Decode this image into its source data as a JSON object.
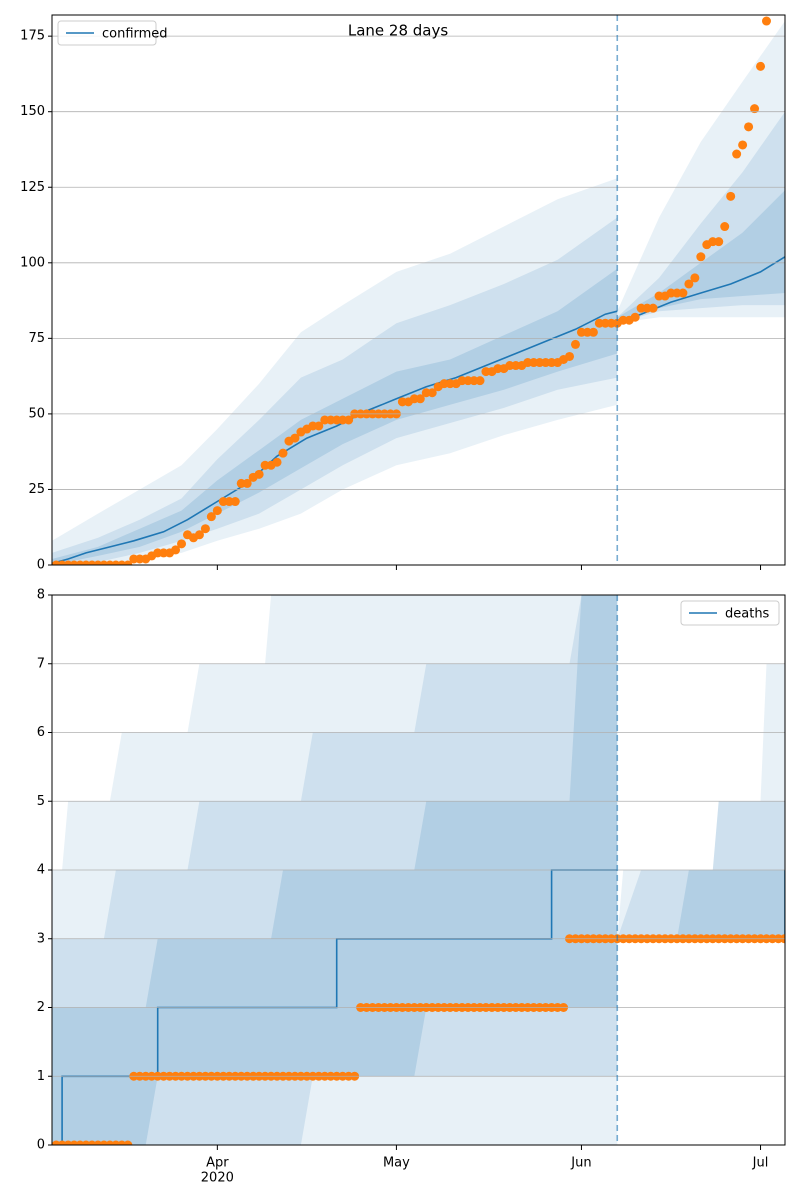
{
  "chart_data": [
    {
      "type": "line",
      "title": "Lane 28 days",
      "legend": "upper left",
      "grid": true,
      "xlim": [
        -0.7,
        122.1
      ],
      "ylim": [
        0,
        182
      ],
      "yticks": [
        0,
        25,
        50,
        75,
        100,
        125,
        150,
        175
      ],
      "xticks": [
        27,
        57,
        88,
        118
      ],
      "xticklabels": false,
      "vline": 94,
      "series": [
        {
          "name": "confirmed",
          "color": "#1f77b4",
          "x": [
            -0.7,
            2,
            5,
            9,
            13,
            18,
            22,
            27,
            32,
            37,
            42,
            47,
            52,
            57,
            62,
            67,
            72,
            77,
            82,
            87,
            92,
            94,
            null,
            94,
            98,
            103,
            108,
            113,
            118,
            122.1
          ],
          "values": [
            0.5,
            2,
            4,
            6,
            8,
            11,
            15,
            21,
            27,
            36,
            42,
            46,
            51,
            55,
            59,
            62,
            66,
            70,
            74,
            78,
            83,
            84,
            null,
            80,
            83,
            87,
            90,
            93,
            97,
            102
          ]
        }
      ],
      "points": {
        "color": "#ff7f0e",
        "x": [
          0,
          1,
          2,
          3,
          4,
          5,
          6,
          7,
          8,
          9,
          10,
          11,
          12,
          13,
          14,
          15,
          16,
          17,
          18,
          19,
          20,
          21,
          22,
          23,
          24,
          25,
          26,
          27,
          28,
          29,
          30,
          31,
          32,
          33,
          34,
          35,
          36,
          37,
          38,
          39,
          40,
          41,
          42,
          43,
          44,
          45,
          46,
          47,
          48,
          49,
          50,
          51,
          52,
          53,
          54,
          55,
          56,
          57,
          58,
          59,
          60,
          61,
          62,
          63,
          64,
          65,
          66,
          67,
          68,
          69,
          70,
          71,
          72,
          73,
          74,
          75,
          76,
          77,
          78,
          79,
          80,
          81,
          82,
          83,
          84,
          85,
          86,
          87,
          88,
          89,
          90,
          91,
          92,
          93,
          94,
          95,
          96,
          97,
          98,
          99,
          100,
          101,
          102,
          103,
          104,
          105,
          106,
          107,
          108,
          109,
          110,
          111,
          112,
          113,
          114,
          115,
          116,
          117,
          118,
          119
        ],
        "values": [
          0,
          0,
          0,
          0,
          0,
          0,
          0,
          0,
          0,
          0,
          0,
          0,
          0,
          2,
          2,
          2,
          3,
          4,
          4,
          4,
          5,
          7,
          10,
          9,
          10,
          12,
          16,
          18,
          21,
          21,
          21,
          27,
          27,
          29,
          30,
          33,
          33,
          34,
          37,
          41,
          42,
          44,
          45,
          46,
          46,
          48,
          48,
          48,
          48,
          48,
          50,
          50,
          50,
          50,
          50,
          50,
          50,
          50,
          54,
          54,
          55,
          55,
          57,
          57,
          59,
          60,
          60,
          60,
          61,
          61,
          61,
          61,
          64,
          64,
          65,
          65,
          66,
          66,
          66,
          67,
          67,
          67,
          67,
          67,
          67,
          68,
          69,
          73,
          77,
          77,
          77,
          80,
          80,
          80,
          80,
          81,
          81,
          82,
          85,
          85,
          85,
          89,
          89,
          90,
          90,
          90,
          93,
          95,
          102,
          106,
          107,
          107,
          112,
          122,
          136,
          139,
          145,
          151,
          165,
          180
        ]
      },
      "band_color": "#1f77b4",
      "bands": [
        {
          "x": [
            -0.7,
            7,
            14,
            21,
            27,
            34,
            41,
            48,
            57,
            66,
            75,
            84,
            94,
            null,
            94,
            101,
            108,
            115,
            122.1
          ],
          "lower": [
            0,
            0,
            2,
            4,
            8,
            12,
            17,
            25,
            33,
            37,
            43,
            48,
            53,
            null,
            80,
            82,
            82,
            82,
            82
          ],
          "upper": [
            8,
            17,
            25,
            33,
            45,
            60,
            77,
            86,
            97,
            103,
            112,
            121,
            128,
            null,
            84,
            115,
            140,
            160,
            180
          ]
        },
        {
          "x": [
            -0.7,
            7,
            14,
            21,
            27,
            34,
            41,
            48,
            57,
            66,
            75,
            84,
            94,
            null,
            94,
            101,
            108,
            115,
            122.1
          ],
          "lower": [
            0,
            1,
            4,
            8,
            12,
            17,
            25,
            33,
            42,
            47,
            52,
            58,
            62,
            null,
            80,
            84,
            85,
            86,
            86
          ],
          "upper": [
            4,
            9,
            15,
            22,
            35,
            48,
            62,
            68,
            80,
            86,
            93,
            101,
            115,
            null,
            82,
            95,
            113,
            130,
            150
          ]
        },
        {
          "x": [
            -0.7,
            7,
            14,
            21,
            27,
            34,
            41,
            48,
            57,
            66,
            75,
            84,
            94,
            null,
            94,
            101,
            108,
            115,
            122.1
          ],
          "lower": [
            0,
            3,
            6,
            11,
            17,
            24,
            32,
            40,
            48,
            53,
            58,
            64,
            70,
            null,
            80,
            85,
            88,
            89,
            90
          ],
          "upper": [
            2,
            6,
            12,
            18,
            28,
            38,
            48,
            55,
            64,
            68,
            76,
            84,
            98,
            null,
            82,
            90,
            100,
            110,
            124
          ]
        }
      ]
    },
    {
      "type": "line",
      "legend": "upper right",
      "grid": true,
      "drawstyle": "steps-post",
      "xlim": [
        -0.7,
        122.1
      ],
      "ylim": [
        0,
        8
      ],
      "yticks": [
        0,
        1,
        2,
        3,
        4,
        5,
        6,
        7,
        8
      ],
      "xticks": [
        {
          "value": 27,
          "label": "Apr",
          "sublabel": "2020"
        },
        {
          "value": 57,
          "label": "May"
        },
        {
          "value": 88,
          "label": "Jun"
        },
        {
          "value": 118,
          "label": "Jul"
        }
      ],
      "vline": 94,
      "series": [
        {
          "name": "deaths",
          "color": "#1f77b4",
          "x": [
            -0.7,
            1,
            17,
            47,
            83,
            94,
            null,
            94,
            121,
            122.1
          ],
          "values": [
            0,
            1,
            2,
            3,
            4,
            4,
            null,
            3,
            3,
            4
          ]
        }
      ],
      "points": {
        "color": "#ff7f0e",
        "x": [
          0,
          1,
          2,
          3,
          4,
          5,
          6,
          7,
          8,
          9,
          10,
          11,
          12,
          13,
          14,
          15,
          16,
          17,
          18,
          19,
          20,
          21,
          22,
          23,
          24,
          25,
          26,
          27,
          28,
          29,
          30,
          31,
          32,
          33,
          34,
          35,
          36,
          37,
          38,
          39,
          40,
          41,
          42,
          43,
          44,
          45,
          46,
          47,
          48,
          49,
          50,
          51,
          52,
          53,
          54,
          55,
          56,
          57,
          58,
          59,
          60,
          61,
          62,
          63,
          64,
          65,
          66,
          67,
          68,
          69,
          70,
          71,
          72,
          73,
          74,
          75,
          76,
          77,
          78,
          79,
          80,
          81,
          82,
          83,
          84,
          85,
          86,
          87,
          88,
          89,
          90,
          91,
          92,
          93,
          94,
          95,
          96,
          97,
          98,
          99,
          100,
          101,
          102,
          103,
          104,
          105,
          106,
          107,
          108,
          109,
          110,
          111,
          112,
          113,
          114,
          115,
          116,
          117,
          118,
          119,
          120,
          121,
          122
        ],
        "values": [
          0,
          0,
          0,
          0,
          0,
          0,
          0,
          0,
          0,
          0,
          0,
          0,
          0,
          1,
          1,
          1,
          1,
          1,
          1,
          1,
          1,
          1,
          1,
          1,
          1,
          1,
          1,
          1,
          1,
          1,
          1,
          1,
          1,
          1,
          1,
          1,
          1,
          1,
          1,
          1,
          1,
          1,
          1,
          1,
          1,
          1,
          1,
          1,
          1,
          1,
          1,
          2,
          2,
          2,
          2,
          2,
          2,
          2,
          2,
          2,
          2,
          2,
          2,
          2,
          2,
          2,
          2,
          2,
          2,
          2,
          2,
          2,
          2,
          2,
          2,
          2,
          2,
          2,
          2,
          2,
          2,
          2,
          2,
          2,
          2,
          2,
          3,
          3,
          3,
          3,
          3,
          3,
          3,
          3,
          3,
          3,
          3,
          3,
          3,
          3,
          3,
          3,
          3,
          3,
          3,
          3,
          3,
          3,
          3,
          3,
          3,
          3,
          3,
          3,
          3,
          3,
          3,
          3,
          3,
          3,
          3,
          3,
          3
        ]
      },
      "band_color": "#1f77b4",
      "bands": [
        {
          "x": [
            -0.7,
            1,
            2,
            9,
            11,
            22,
            24,
            35,
            36,
            94,
            null,
            94,
            95,
            110,
            111,
            118,
            119,
            122.1
          ],
          "lower": [
            0,
            0,
            0,
            0,
            0,
            0,
            0,
            0,
            0,
            0,
            null,
            3,
            3,
            3,
            3,
            3,
            3,
            3
          ],
          "upper": [
            4,
            4,
            5,
            5,
            6,
            6,
            7,
            7,
            8,
            8,
            null,
            3,
            4,
            4,
            5,
            5,
            7,
            7
          ]
        },
        {
          "x": [
            -0.7,
            8,
            10,
            22,
            24,
            41,
            43,
            60,
            62,
            86,
            88,
            94,
            null,
            94,
            98,
            110,
            111,
            122.1
          ],
          "lower": [
            0,
            0,
            0,
            0,
            0,
            0,
            1,
            1,
            1,
            1,
            1,
            1,
            null,
            3,
            3,
            3,
            3,
            3
          ],
          "upper": [
            3,
            3,
            4,
            4,
            5,
            5,
            6,
            6,
            7,
            7,
            8,
            8,
            null,
            3,
            4,
            4,
            5,
            5
          ]
        },
        {
          "x": [
            -0.7,
            15,
            17,
            36,
            38,
            60,
            62,
            86,
            88,
            94,
            null,
            94,
            104,
            106,
            122.1
          ],
          "lower": [
            0,
            0,
            1,
            1,
            1,
            1,
            2,
            2,
            2,
            2,
            null,
            3,
            3,
            3,
            3
          ],
          "upper": [
            2,
            2,
            3,
            3,
            4,
            4,
            5,
            5,
            8,
            8,
            null,
            3,
            3,
            4,
            4
          ]
        }
      ]
    }
  ]
}
